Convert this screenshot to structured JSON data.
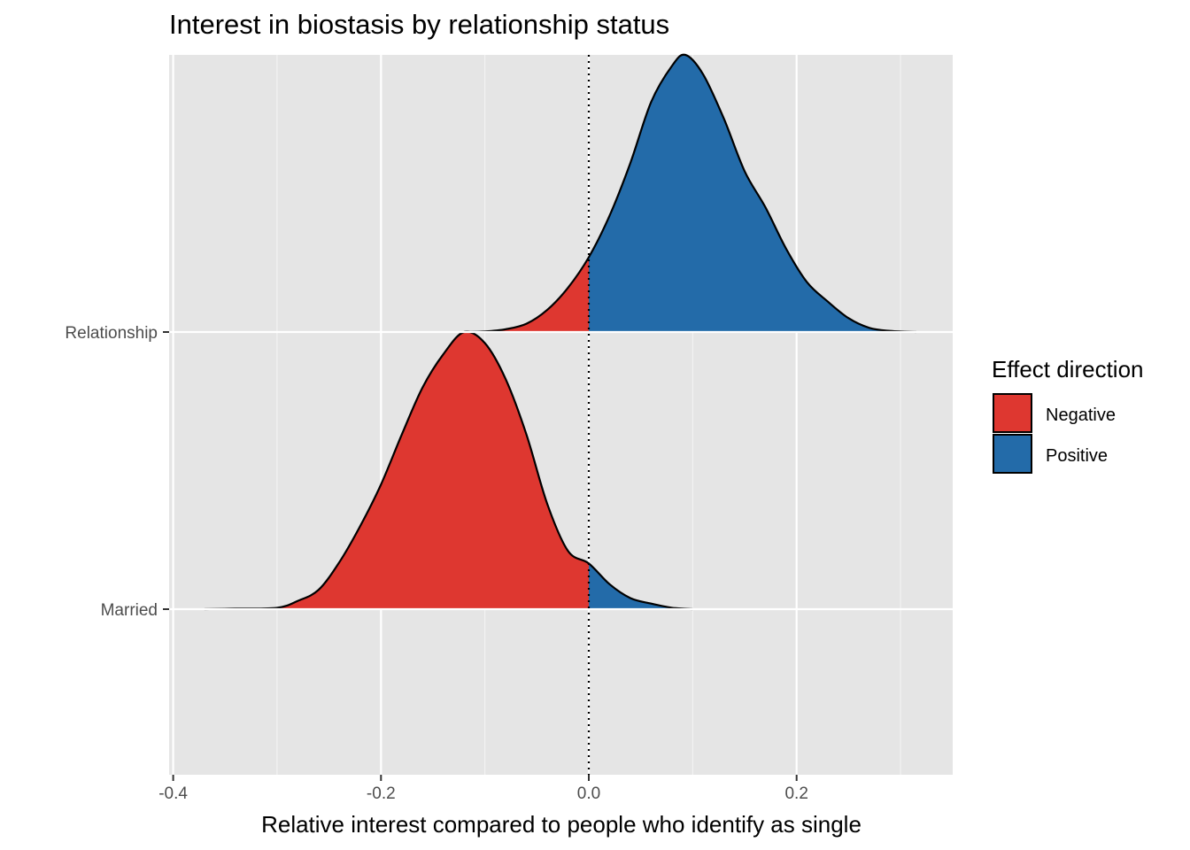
{
  "chart_data": {
    "type": "area",
    "subtype": "ridgeline-density",
    "title": "Interest in biostasis by relationship status",
    "xlabel": "Relative interest compared to people who identify as single",
    "ylabel": "",
    "xlim": [
      -0.4,
      0.35
    ],
    "x_ticks": [
      {
        "value": -0.4,
        "label": "-0.4"
      },
      {
        "value": -0.2,
        "label": "-0.2"
      },
      {
        "value": 0.0,
        "label": "0.0"
      },
      {
        "value": 0.2,
        "label": "0.2"
      }
    ],
    "x_minor_gridlines": [
      -0.3,
      -0.1,
      0.1,
      0.3
    ],
    "categories": [
      "Married",
      "Relationship"
    ],
    "reference_line": {
      "x": 0.0,
      "style": "dotted"
    },
    "grid": true,
    "legend": {
      "title": "Effect direction",
      "position": "right",
      "entries": [
        {
          "label": "Negative",
          "color": "#de3730"
        },
        {
          "label": "Positive",
          "color": "#236ba9"
        }
      ]
    },
    "series": [
      {
        "category": "Relationship",
        "points": [
          [
            -0.12,
            0.0
          ],
          [
            -0.1,
            0.002
          ],
          [
            -0.08,
            0.01
          ],
          [
            -0.06,
            0.03
          ],
          [
            -0.04,
            0.08
          ],
          [
            -0.02,
            0.16
          ],
          [
            0.0,
            0.27
          ],
          [
            0.02,
            0.42
          ],
          [
            0.04,
            0.61
          ],
          [
            0.06,
            0.83
          ],
          [
            0.08,
            0.96
          ],
          [
            0.093,
            1.0
          ],
          [
            0.11,
            0.93
          ],
          [
            0.13,
            0.77
          ],
          [
            0.15,
            0.58
          ],
          [
            0.17,
            0.45
          ],
          [
            0.19,
            0.3
          ],
          [
            0.21,
            0.18
          ],
          [
            0.23,
            0.11
          ],
          [
            0.25,
            0.05
          ],
          [
            0.27,
            0.015
          ],
          [
            0.29,
            0.004
          ],
          [
            0.315,
            0.0
          ]
        ]
      },
      {
        "category": "Married",
        "points": [
          [
            -0.37,
            0.0
          ],
          [
            -0.34,
            0.002
          ],
          [
            -0.3,
            0.005
          ],
          [
            -0.28,
            0.03
          ],
          [
            -0.26,
            0.07
          ],
          [
            -0.24,
            0.17
          ],
          [
            -0.22,
            0.3
          ],
          [
            -0.2,
            0.45
          ],
          [
            -0.18,
            0.63
          ],
          [
            -0.16,
            0.8
          ],
          [
            -0.14,
            0.92
          ],
          [
            -0.12,
            1.0
          ],
          [
            -0.1,
            0.96
          ],
          [
            -0.08,
            0.83
          ],
          [
            -0.06,
            0.63
          ],
          [
            -0.04,
            0.38
          ],
          [
            -0.02,
            0.21
          ],
          [
            0.0,
            0.165
          ],
          [
            0.02,
            0.09
          ],
          [
            0.04,
            0.04
          ],
          [
            0.06,
            0.02
          ],
          [
            0.08,
            0.005
          ],
          [
            0.1,
            0.0
          ]
        ]
      }
    ]
  }
}
